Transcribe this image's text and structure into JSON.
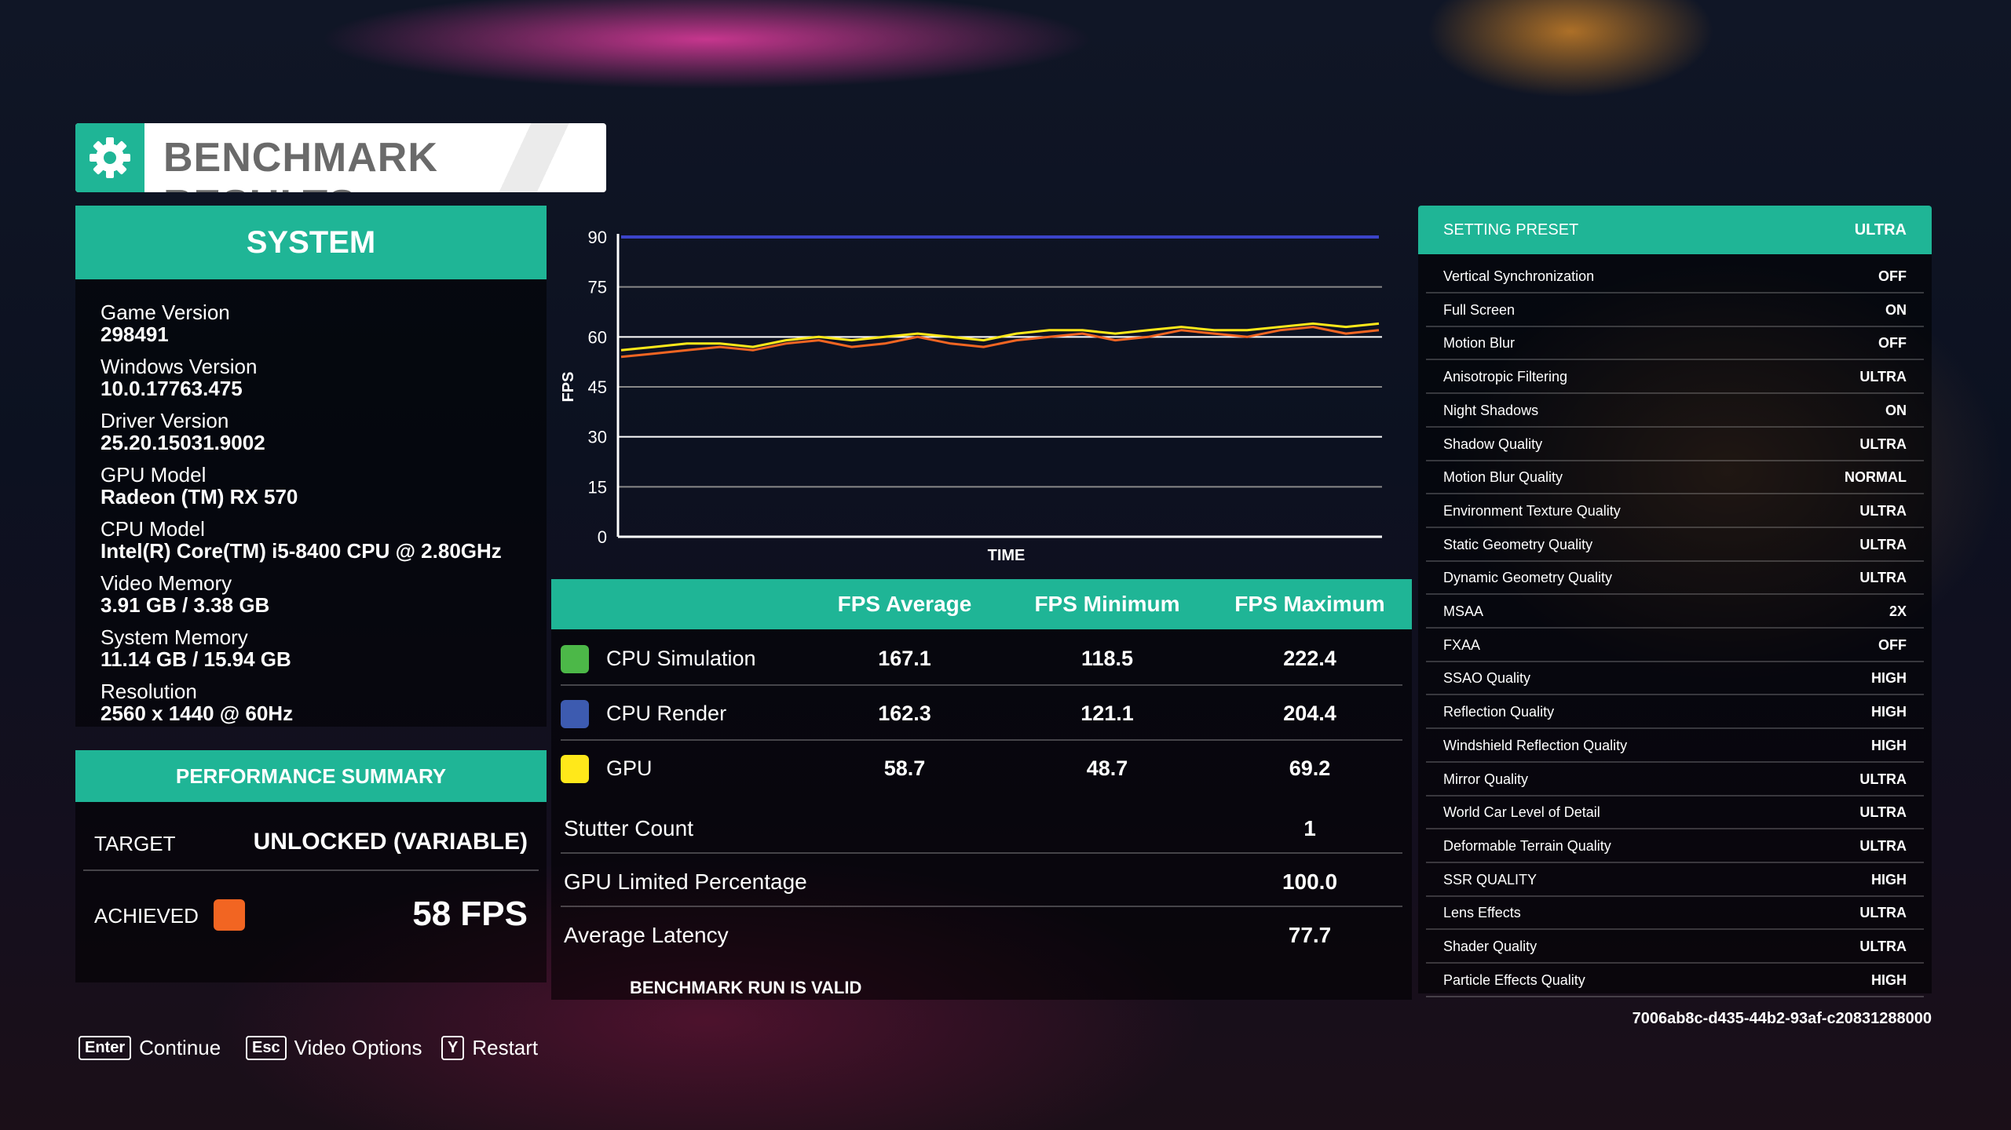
{
  "header": {
    "title": "BENCHMARK RESULTS",
    "icon": "gear-icon"
  },
  "system": {
    "title": "SYSTEM",
    "items": [
      {
        "label": "Game Version",
        "value": "298491"
      },
      {
        "label": "Windows Version",
        "value": "10.0.17763.475"
      },
      {
        "label": "Driver Version",
        "value": "25.20.15031.9002"
      },
      {
        "label": "GPU Model",
        "value": "Radeon (TM) RX 570"
      },
      {
        "label": "CPU Model",
        "value": "Intel(R) Core(TM) i5-8400 CPU @ 2.80GHz"
      },
      {
        "label": "Video Memory",
        "value": "3.91 GB / 3.38 GB"
      },
      {
        "label": "System Memory",
        "value": "11.14 GB / 15.94 GB"
      },
      {
        "label": "Resolution",
        "value": "2560 x 1440 @ 60Hz"
      }
    ]
  },
  "performance": {
    "title": "PERFORMANCE SUMMARY",
    "target_label": "TARGET",
    "target_value": "UNLOCKED (VARIABLE)",
    "achieved_label": "ACHIEVED",
    "achieved_value": "58 FPS",
    "achieved_color": "#f26522"
  },
  "chart_data": {
    "type": "line",
    "xlabel": "TIME",
    "ylabel": "FPS",
    "ylim": [
      0,
      90
    ],
    "yticks": [
      0,
      15,
      30,
      45,
      60,
      75,
      90
    ],
    "grid": true,
    "series": [
      {
        "color": "#3b44c9",
        "values": [
          90,
          90
        ]
      },
      {
        "color": "#f26522",
        "values": [
          54,
          55,
          56,
          57,
          56,
          58,
          59,
          57,
          58,
          60,
          58,
          57,
          59,
          60,
          61,
          59,
          60,
          62,
          61,
          60,
          62,
          63,
          61,
          62
        ]
      },
      {
        "color": "#ffe81a",
        "values": [
          56,
          57,
          58,
          58,
          57,
          59,
          60,
          59,
          60,
          61,
          60,
          59,
          61,
          62,
          62,
          61,
          62,
          63,
          62,
          62,
          63,
          64,
          63,
          64
        ]
      }
    ]
  },
  "table": {
    "headers": [
      "FPS Average",
      "FPS Minimum",
      "FPS Maximum"
    ],
    "rows": [
      {
        "name": "CPU Simulation",
        "color": "#4cb848",
        "avg": "167.1",
        "min": "118.5",
        "max": "222.4"
      },
      {
        "name": "CPU Render",
        "color": "#3d5bb0",
        "avg": "162.3",
        "min": "121.1",
        "max": "204.4"
      },
      {
        "name": "GPU",
        "color": "#ffe81a",
        "avg": "58.7",
        "min": "48.7",
        "max": "69.2"
      }
    ],
    "extras": [
      {
        "name": "Stutter Count",
        "value": "1"
      },
      {
        "name": "GPU Limited Percentage",
        "value": "100.0"
      },
      {
        "name": "Average Latency",
        "value": "77.7"
      }
    ],
    "valid_text": "BENCHMARK RUN IS VALID"
  },
  "settings": {
    "preset_label": "SETTING PRESET",
    "preset_value": "ULTRA",
    "items": [
      {
        "label": "Vertical Synchronization",
        "value": "OFF"
      },
      {
        "label": "Full Screen",
        "value": "ON"
      },
      {
        "label": "Motion Blur",
        "value": "OFF"
      },
      {
        "label": "Anisotropic Filtering",
        "value": "ULTRA"
      },
      {
        "label": "Night Shadows",
        "value": "ON"
      },
      {
        "label": "Shadow Quality",
        "value": "ULTRA"
      },
      {
        "label": "Motion Blur Quality",
        "value": "NORMAL"
      },
      {
        "label": "Environment Texture Quality",
        "value": "ULTRA"
      },
      {
        "label": "Static Geometry Quality",
        "value": "ULTRA"
      },
      {
        "label": "Dynamic Geometry Quality",
        "value": "ULTRA"
      },
      {
        "label": "MSAA",
        "value": "2X"
      },
      {
        "label": "FXAA",
        "value": "OFF"
      },
      {
        "label": "SSAO Quality",
        "value": "HIGH"
      },
      {
        "label": "Reflection Quality",
        "value": "HIGH"
      },
      {
        "label": "Windshield Reflection Quality",
        "value": "HIGH"
      },
      {
        "label": "Mirror Quality",
        "value": "ULTRA"
      },
      {
        "label": "World Car Level of Detail",
        "value": "ULTRA"
      },
      {
        "label": "Deformable Terrain Quality",
        "value": "ULTRA"
      },
      {
        "label": "SSR QUALITY",
        "value": "HIGH"
      },
      {
        "label": "Lens Effects",
        "value": "ULTRA"
      },
      {
        "label": "Shader Quality",
        "value": "ULTRA"
      },
      {
        "label": "Particle Effects Quality",
        "value": "HIGH"
      }
    ],
    "hash": "7006ab8c-d435-44b2-93af-c20831288000"
  },
  "footer": [
    {
      "key": "Enter",
      "label": "Continue"
    },
    {
      "key": "Esc",
      "label": "Video Options"
    },
    {
      "key": "Y",
      "label": "Restart"
    }
  ]
}
